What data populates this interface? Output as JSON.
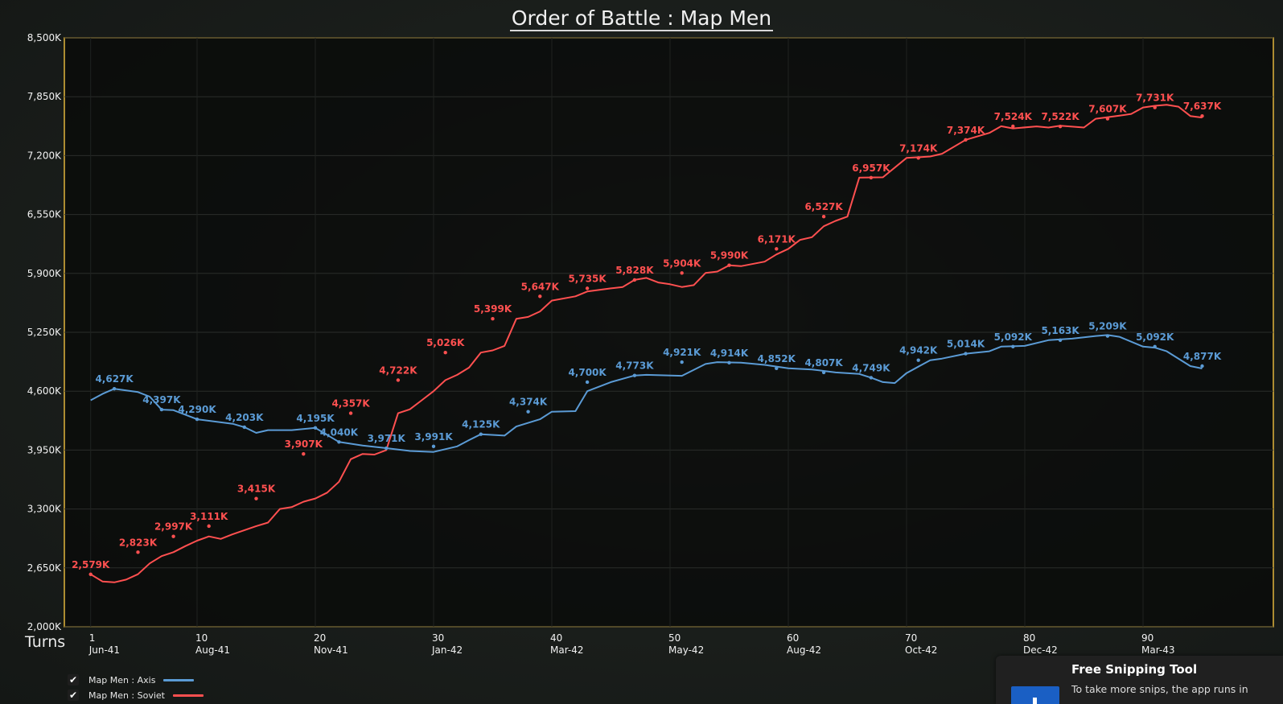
{
  "title": "Order of Battle : Map Men",
  "axis_label": "Turns",
  "chart_data": {
    "type": "line",
    "title": "Order of Battle : Map Men",
    "xlabel": "Turns",
    "ylabel": "",
    "xlim": [
      0,
      95
    ],
    "ylim": [
      2000,
      8500
    ],
    "y_ticks": [
      "8,500K",
      "7,850K",
      "7,200K",
      "6,550K",
      "5,900K",
      "5,250K",
      "4,600K",
      "3,950K",
      "3,300K",
      "2,650K",
      "2,000K"
    ],
    "y_tick_values": [
      8500,
      7850,
      7200,
      6550,
      5900,
      5250,
      4600,
      3950,
      3300,
      2650,
      2000
    ],
    "x_ticks": [
      {
        "turn": 1,
        "label": "1",
        "date": "Jun-41"
      },
      {
        "turn": 10,
        "label": "10",
        "date": "Aug-41"
      },
      {
        "turn": 20,
        "label": "20",
        "date": "Nov-41"
      },
      {
        "turn": 30,
        "label": "30",
        "date": "Jan-42"
      },
      {
        "turn": 40,
        "label": "40",
        "date": "Mar-42"
      },
      {
        "turn": 50,
        "label": "50",
        "date": "May-42"
      },
      {
        "turn": 60,
        "label": "60",
        "date": "Aug-42"
      },
      {
        "turn": 70,
        "label": "70",
        "date": "Oct-42"
      },
      {
        "turn": 80,
        "label": "80",
        "date": "Dec-42"
      },
      {
        "turn": 90,
        "label": "90",
        "date": "Mar-43"
      }
    ],
    "grid": true,
    "series": [
      {
        "name": "Map Men : Axis",
        "color": "#5b9bd5",
        "points": [
          [
            1,
            4500
          ],
          [
            2,
            4570
          ],
          [
            3,
            4627
          ],
          [
            5,
            4590
          ],
          [
            6,
            4540
          ],
          [
            7,
            4397
          ],
          [
            8,
            4390
          ],
          [
            10,
            4290
          ],
          [
            13,
            4240
          ],
          [
            14,
            4203
          ],
          [
            15,
            4140
          ],
          [
            16,
            4170
          ],
          [
            18,
            4170
          ],
          [
            20,
            4195
          ],
          [
            22,
            4040
          ],
          [
            24,
            4000
          ],
          [
            26,
            3971
          ],
          [
            28,
            3940
          ],
          [
            30,
            3930
          ],
          [
            32,
            3991
          ],
          [
            33,
            4060
          ],
          [
            34,
            4125
          ],
          [
            36,
            4110
          ],
          [
            37,
            4210
          ],
          [
            38,
            4250
          ],
          [
            39,
            4290
          ],
          [
            40,
            4374
          ],
          [
            42,
            4380
          ],
          [
            43,
            4600
          ],
          [
            45,
            4700
          ],
          [
            47,
            4773
          ],
          [
            48,
            4780
          ],
          [
            51,
            4770
          ],
          [
            53,
            4900
          ],
          [
            54,
            4921
          ],
          [
            56,
            4914
          ],
          [
            58,
            4890
          ],
          [
            60,
            4852
          ],
          [
            62,
            4840
          ],
          [
            64,
            4807
          ],
          [
            66,
            4790
          ],
          [
            67,
            4749
          ],
          [
            68,
            4700
          ],
          [
            69,
            4690
          ],
          [
            70,
            4800
          ],
          [
            72,
            4942
          ],
          [
            73,
            4960
          ],
          [
            75,
            5014
          ],
          [
            77,
            5040
          ],
          [
            78,
            5092
          ],
          [
            80,
            5100
          ],
          [
            82,
            5163
          ],
          [
            84,
            5180
          ],
          [
            86,
            5209
          ],
          [
            87,
            5220
          ],
          [
            88,
            5200
          ],
          [
            90,
            5092
          ],
          [
            91,
            5080
          ],
          [
            92,
            5040
          ],
          [
            94,
            4877
          ],
          [
            95,
            4850
          ]
        ]
      },
      {
        "name": "Map Men : Soviet",
        "color": "#ff5050",
        "points": [
          [
            1,
            2579
          ],
          [
            2,
            2500
          ],
          [
            3,
            2490
          ],
          [
            4,
            2520
          ],
          [
            5,
            2580
          ],
          [
            6,
            2700
          ],
          [
            7,
            2780
          ],
          [
            8,
            2823
          ],
          [
            9,
            2890
          ],
          [
            10,
            2950
          ],
          [
            11,
            2997
          ],
          [
            12,
            2970
          ],
          [
            13,
            3020
          ],
          [
            15,
            3111
          ],
          [
            16,
            3150
          ],
          [
            17,
            3300
          ],
          [
            18,
            3320
          ],
          [
            19,
            3380
          ],
          [
            20,
            3415
          ],
          [
            21,
            3480
          ],
          [
            22,
            3600
          ],
          [
            23,
            3850
          ],
          [
            24,
            3907
          ],
          [
            25,
            3900
          ],
          [
            26,
            3950
          ],
          [
            27,
            4357
          ],
          [
            28,
            4400
          ],
          [
            29,
            4500
          ],
          [
            30,
            4600
          ],
          [
            31,
            4722
          ],
          [
            32,
            4780
          ],
          [
            33,
            4860
          ],
          [
            34,
            5026
          ],
          [
            35,
            5050
          ],
          [
            36,
            5100
          ],
          [
            37,
            5399
          ],
          [
            38,
            5420
          ],
          [
            39,
            5480
          ],
          [
            40,
            5600
          ],
          [
            42,
            5647
          ],
          [
            43,
            5700
          ],
          [
            45,
            5735
          ],
          [
            46,
            5750
          ],
          [
            47,
            5828
          ],
          [
            48,
            5850
          ],
          [
            49,
            5800
          ],
          [
            50,
            5780
          ],
          [
            51,
            5750
          ],
          [
            52,
            5770
          ],
          [
            53,
            5904
          ],
          [
            54,
            5920
          ],
          [
            55,
            5990
          ],
          [
            56,
            5980
          ],
          [
            58,
            6030
          ],
          [
            59,
            6110
          ],
          [
            60,
            6171
          ],
          [
            61,
            6270
          ],
          [
            62,
            6300
          ],
          [
            63,
            6420
          ],
          [
            64,
            6480
          ],
          [
            65,
            6527
          ],
          [
            66,
            6957
          ],
          [
            68,
            6960
          ],
          [
            70,
            7174
          ],
          [
            72,
            7190
          ],
          [
            73,
            7220
          ],
          [
            75,
            7374
          ],
          [
            77,
            7450
          ],
          [
            78,
            7524
          ],
          [
            79,
            7500
          ],
          [
            81,
            7522
          ],
          [
            82,
            7510
          ],
          [
            83,
            7530
          ],
          [
            85,
            7510
          ],
          [
            86,
            7607
          ],
          [
            88,
            7640
          ],
          [
            89,
            7660
          ],
          [
            90,
            7731
          ],
          [
            91,
            7750
          ],
          [
            92,
            7760
          ],
          [
            93,
            7740
          ],
          [
            94,
            7637
          ],
          [
            95,
            7620
          ]
        ]
      }
    ],
    "data_labels": [
      {
        "series": 0,
        "turn": 3,
        "value": 4627,
        "text": "4,627K"
      },
      {
        "series": 0,
        "turn": 7,
        "value": 4397,
        "text": "4,397K"
      },
      {
        "series": 0,
        "turn": 10,
        "value": 4290,
        "text": "4,290K"
      },
      {
        "series": 0,
        "turn": 14,
        "value": 4203,
        "text": "4,203K"
      },
      {
        "series": 0,
        "turn": 20,
        "value": 4195,
        "text": "4,195K"
      },
      {
        "series": 0,
        "turn": 22,
        "value": 4040,
        "text": "4,040K"
      },
      {
        "series": 0,
        "turn": 26,
        "value": 3971,
        "text": "3,971K"
      },
      {
        "series": 0,
        "turn": 30,
        "value": 3991,
        "text": "3,991K"
      },
      {
        "series": 0,
        "turn": 34,
        "value": 4125,
        "text": "4,125K"
      },
      {
        "series": 0,
        "turn": 38,
        "value": 4374,
        "text": "4,374K"
      },
      {
        "series": 0,
        "turn": 43,
        "value": 4700,
        "text": "4,700K"
      },
      {
        "series": 0,
        "turn": 47,
        "value": 4773,
        "text": "4,773K"
      },
      {
        "series": 0,
        "turn": 51,
        "value": 4921,
        "text": "4,921K"
      },
      {
        "series": 0,
        "turn": 55,
        "value": 4914,
        "text": "4,914K"
      },
      {
        "series": 0,
        "turn": 59,
        "value": 4852,
        "text": "4,852K"
      },
      {
        "series": 0,
        "turn": 63,
        "value": 4807,
        "text": "4,807K"
      },
      {
        "series": 0,
        "turn": 67,
        "value": 4749,
        "text": "4,749K"
      },
      {
        "series": 0,
        "turn": 71,
        "value": 4942,
        "text": "4,942K"
      },
      {
        "series": 0,
        "turn": 75,
        "value": 5014,
        "text": "5,014K"
      },
      {
        "series": 0,
        "turn": 79,
        "value": 5092,
        "text": "5,092K"
      },
      {
        "series": 0,
        "turn": 83,
        "value": 5163,
        "text": "5,163K"
      },
      {
        "series": 0,
        "turn": 87,
        "value": 5209,
        "text": "5,209K"
      },
      {
        "series": 0,
        "turn": 91,
        "value": 5092,
        "text": "5,092K"
      },
      {
        "series": 0,
        "turn": 95,
        "value": 4877,
        "text": "4,877K"
      },
      {
        "series": 1,
        "turn": 1,
        "value": 2579,
        "text": "2,579K"
      },
      {
        "series": 1,
        "turn": 5,
        "value": 2823,
        "text": "2,823K"
      },
      {
        "series": 1,
        "turn": 8,
        "value": 2997,
        "text": "2,997K"
      },
      {
        "series": 1,
        "turn": 11,
        "value": 3111,
        "text": "3,111K"
      },
      {
        "series": 1,
        "turn": 15,
        "value": 3415,
        "text": "3,415K"
      },
      {
        "series": 1,
        "turn": 19,
        "value": 3907,
        "text": "3,907K"
      },
      {
        "series": 1,
        "turn": 23,
        "value": 4357,
        "text": "4,357K"
      },
      {
        "series": 1,
        "turn": 27,
        "value": 4722,
        "text": "4,722K"
      },
      {
        "series": 1,
        "turn": 31,
        "value": 5026,
        "text": "5,026K"
      },
      {
        "series": 1,
        "turn": 35,
        "value": 5399,
        "text": "5,399K"
      },
      {
        "series": 1,
        "turn": 39,
        "value": 5647,
        "text": "5,647K"
      },
      {
        "series": 1,
        "turn": 43,
        "value": 5735,
        "text": "5,735K"
      },
      {
        "series": 1,
        "turn": 47,
        "value": 5828,
        "text": "5,828K"
      },
      {
        "series": 1,
        "turn": 51,
        "value": 5904,
        "text": "5,904K"
      },
      {
        "series": 1,
        "turn": 55,
        "value": 5990,
        "text": "5,990K"
      },
      {
        "series": 1,
        "turn": 59,
        "value": 6171,
        "text": "6,171K"
      },
      {
        "series": 1,
        "turn": 63,
        "value": 6527,
        "text": "6,527K"
      },
      {
        "series": 1,
        "turn": 67,
        "value": 6957,
        "text": "6,957K"
      },
      {
        "series": 1,
        "turn": 71,
        "value": 7174,
        "text": "7,174K"
      },
      {
        "series": 1,
        "turn": 75,
        "value": 7374,
        "text": "7,374K"
      },
      {
        "series": 1,
        "turn": 79,
        "value": 7524,
        "text": "7,524K"
      },
      {
        "series": 1,
        "turn": 83,
        "value": 7522,
        "text": "7,522K"
      },
      {
        "series": 1,
        "turn": 87,
        "value": 7607,
        "text": "7,607K"
      },
      {
        "series": 1,
        "turn": 91,
        "value": 7731,
        "text": "7,731K"
      },
      {
        "series": 1,
        "turn": 95,
        "value": 7637,
        "text": "7,637K"
      }
    ]
  },
  "legend": [
    {
      "label": "Map Men : Axis",
      "checked": true,
      "color": "#5b9bd5"
    },
    {
      "label": "Map Men : Soviet",
      "checked": true,
      "color": "#ff5050"
    }
  ],
  "toast": {
    "title": "Free Snipping Tool",
    "body": "To take more snips, the app runs in"
  },
  "colors": {
    "plot_border": "#e0b43c",
    "plot_bg": "#0a0b0a",
    "axis_text": "#f2f2f2"
  }
}
